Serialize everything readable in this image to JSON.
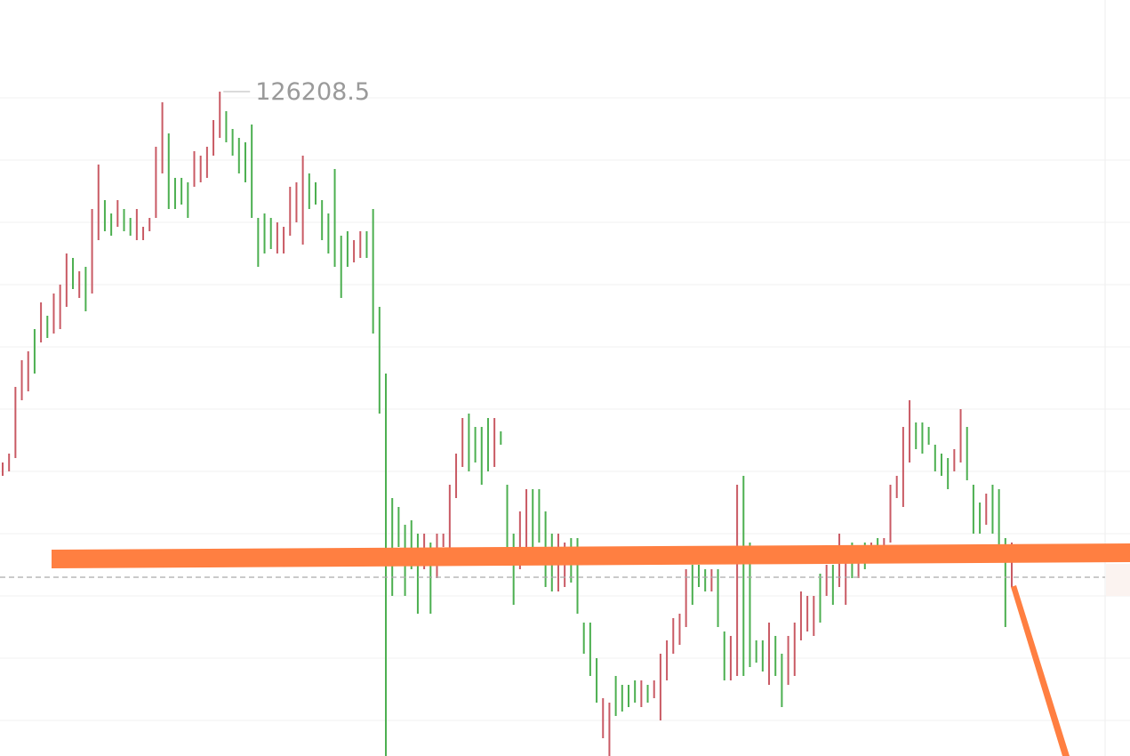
{
  "chart_data": {
    "type": "ohlc-range",
    "ylim": [
      103800,
      129300
    ],
    "up_color": "#4caf50",
    "down_color": "#c95a64",
    "high": [
      113700,
      114000,
      116250,
      117150,
      117450,
      118200,
      119100,
      118650,
      119400,
      119700,
      120750,
      120600,
      120150,
      120300,
      122250,
      123750,
      122550,
      122100,
      122550,
      122250,
      121950,
      122250,
      121650,
      121950,
      124350,
      125850,
      124800,
      123300,
      123300,
      123150,
      124200,
      124050,
      124350,
      125250,
      126208.5,
      125550,
      124950,
      124650,
      124500,
      125100,
      121950,
      122100,
      121950,
      121800,
      121650,
      123000,
      123150,
      124050,
      123450,
      123150,
      122550,
      122100,
      123600,
      121350,
      121500,
      121200,
      121500,
      121500,
      122250,
      118950,
      116700,
      112500,
      112200,
      111600,
      111750,
      111300,
      111300,
      111000,
      111300,
      111300,
      112950,
      114000,
      115200,
      115350,
      114900,
      114900,
      115200,
      115200,
      114750,
      112950,
      111300,
      112050,
      112800,
      112800,
      112800,
      112050,
      111300,
      111300,
      111000,
      111150,
      111150,
      108300,
      108300,
      107100,
      105750,
      105600,
      106500,
      106200,
      106200,
      106350,
      106350,
      106200,
      106350,
      107250,
      107700,
      108450,
      108600,
      110100,
      110250,
      110250,
      110100,
      110100,
      110100,
      108000,
      107850,
      112950,
      113250,
      111000,
      107700,
      107700,
      108300,
      107850,
      107250,
      107850,
      108300,
      109350,
      109200,
      109200,
      109950,
      110250,
      110250,
      111300,
      110400,
      111000,
      110700,
      111000,
      111000,
      111150,
      111150,
      112950,
      113250,
      114900,
      115800,
      115050,
      115050,
      114900,
      114300,
      114000,
      113850,
      114150,
      115500,
      114900,
      112950,
      112350,
      112650,
      112950,
      112800,
      111150,
      111000
    ],
    "low": [
      113250,
      113400,
      113850,
      115800,
      116100,
      116700,
      117750,
      117900,
      118050,
      118200,
      118950,
      119550,
      119250,
      118800,
      119400,
      121200,
      121500,
      121350,
      121650,
      121500,
      121350,
      121200,
      121200,
      121500,
      121950,
      123450,
      122250,
      122250,
      122400,
      121950,
      123000,
      123150,
      123300,
      124050,
      124650,
      124500,
      124050,
      123450,
      123150,
      121950,
      120300,
      120750,
      120900,
      120750,
      120750,
      121350,
      121800,
      121050,
      122250,
      122400,
      121200,
      120750,
      120300,
      119250,
      120300,
      120450,
      120600,
      120600,
      118050,
      115350,
      103800,
      109200,
      110850,
      109200,
      110100,
      108600,
      110100,
      108600,
      109800,
      110850,
      110400,
      112500,
      113550,
      113400,
      113700,
      112950,
      113400,
      113550,
      114300,
      110850,
      108900,
      110100,
      110850,
      110850,
      111000,
      109500,
      109350,
      109350,
      109500,
      109650,
      108600,
      107250,
      106500,
      105600,
      104400,
      103800,
      105150,
      105300,
      105450,
      105600,
      105450,
      105600,
      105750,
      105000,
      106350,
      107250,
      107550,
      108150,
      108900,
      109500,
      109350,
      109350,
      108150,
      106350,
      106350,
      106500,
      106500,
      106800,
      106950,
      106650,
      106200,
      106500,
      105450,
      106200,
      106500,
      107700,
      108000,
      107850,
      108300,
      109200,
      108900,
      109500,
      108900,
      109800,
      109800,
      110100,
      110400,
      110550,
      110700,
      111000,
      112500,
      112200,
      113700,
      114150,
      114000,
      114300,
      113400,
      113250,
      112800,
      113400,
      113700,
      113100,
      111300,
      111300,
      111600,
      111300,
      110550,
      108150,
      109500
    ],
    "rising": [
      false,
      false,
      false,
      false,
      false,
      true,
      false,
      true,
      false,
      false,
      false,
      true,
      false,
      true,
      false,
      false,
      true,
      true,
      false,
      true,
      true,
      false,
      false,
      false,
      false,
      false,
      true,
      true,
      true,
      true,
      false,
      false,
      false,
      false,
      false,
      true,
      true,
      true,
      true,
      true,
      true,
      true,
      true,
      false,
      false,
      false,
      false,
      false,
      true,
      true,
      true,
      true,
      true,
      true,
      true,
      false,
      false,
      true,
      true,
      true,
      true,
      true,
      true,
      true,
      true,
      true,
      false,
      true,
      false,
      false,
      false,
      false,
      false,
      true,
      true,
      true,
      true,
      false,
      true,
      true,
      true,
      false,
      false,
      true,
      true,
      true,
      true,
      false,
      false,
      true,
      true,
      true,
      true,
      true,
      false,
      false,
      true,
      true,
      true,
      true,
      false,
      true,
      false,
      false,
      false,
      false,
      false,
      false,
      true,
      true,
      true,
      false,
      true,
      true,
      false,
      false,
      true,
      true,
      true,
      true,
      false,
      true,
      true,
      false,
      false,
      false,
      false,
      false,
      true,
      false,
      true,
      false,
      false,
      true,
      false,
      true,
      false,
      true,
      false,
      false,
      false,
      false,
      false,
      true,
      true,
      true,
      true,
      true,
      true,
      false,
      false,
      true,
      true,
      true,
      false,
      true,
      true,
      true,
      false
    ]
  }
}
